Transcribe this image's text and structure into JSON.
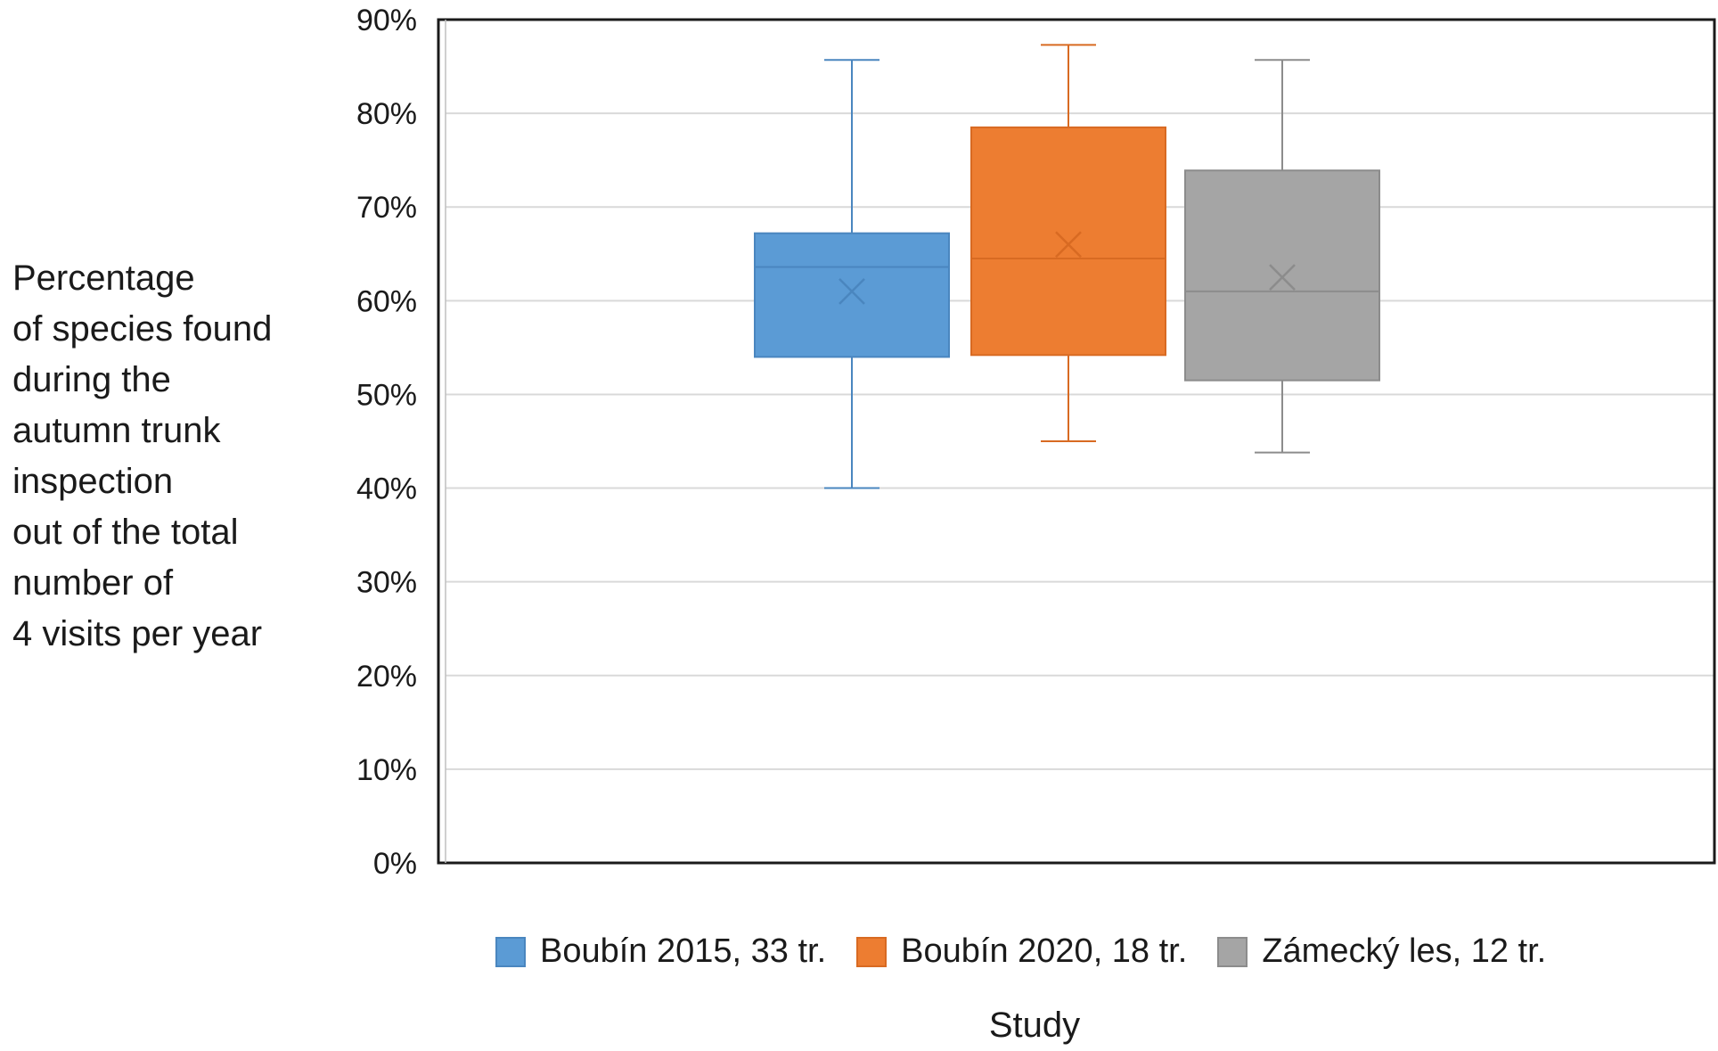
{
  "chart_data": {
    "type": "box",
    "title": "",
    "ylabel_lines": [
      "Percentage",
      "of species found",
      "during the",
      "autumn trunk",
      "inspection",
      "out of the total",
      "number of",
      "4 visits per year"
    ],
    "xlabel": "Study",
    "ylim": [
      0,
      0.9
    ],
    "yticks": [
      {
        "value": 0.0,
        "label": "0%"
      },
      {
        "value": 0.1,
        "label": "10%"
      },
      {
        "value": 0.2,
        "label": "20%"
      },
      {
        "value": 0.3,
        "label": "30%"
      },
      {
        "value": 0.4,
        "label": "40%"
      },
      {
        "value": 0.5,
        "label": "50%"
      },
      {
        "value": 0.6,
        "label": "60%"
      },
      {
        "value": 0.7,
        "label": "70%"
      },
      {
        "value": 0.8,
        "label": "80%"
      },
      {
        "value": 0.9,
        "label": "90%"
      }
    ],
    "grid": true,
    "legend_position": "bottom",
    "series": [
      {
        "name": "Boubín 2015, 33 tr.",
        "color": "#5b9bd5",
        "stroke": "#4a86bf",
        "min": 0.4,
        "q1": 0.54,
        "median": 0.636,
        "q3": 0.672,
        "max": 0.857,
        "mean": 0.61
      },
      {
        "name": "Boubín 2020, 18 tr.",
        "color": "#ed7d31",
        "stroke": "#d86a22",
        "min": 0.45,
        "q1": 0.542,
        "median": 0.645,
        "q3": 0.785,
        "max": 0.873,
        "mean": 0.66
      },
      {
        "name": "Zámecký les, 12 tr.",
        "color": "#a5a5a5",
        "stroke": "#8c8c8c",
        "min": 0.438,
        "q1": 0.515,
        "median": 0.61,
        "q3": 0.739,
        "max": 0.857,
        "mean": 0.625
      }
    ]
  }
}
